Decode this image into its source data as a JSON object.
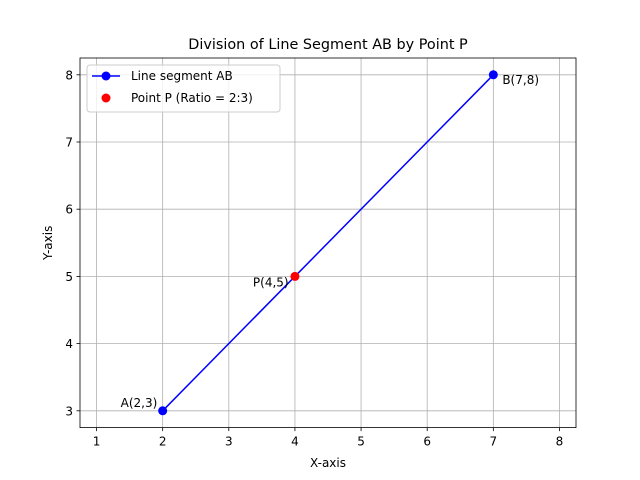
{
  "chart_data": {
    "type": "line",
    "title": "Division of Line Segment AB by Point P",
    "xlabel": "X-axis",
    "ylabel": "Y-axis",
    "xlim": [
      0.75,
      8.25
    ],
    "ylim": [
      2.75,
      8.25
    ],
    "xticks": [
      1,
      2,
      3,
      4,
      5,
      6,
      7,
      8
    ],
    "yticks": [
      3,
      4,
      5,
      6,
      7,
      8
    ],
    "xtick_labels": [
      "1",
      "2",
      "3",
      "4",
      "5",
      "6",
      "7",
      "8"
    ],
    "ytick_labels": [
      "3",
      "4",
      "5",
      "6",
      "7",
      "8"
    ],
    "grid": true,
    "legend_position": "top-left",
    "series": [
      {
        "name": "Line segment AB",
        "color": "#0000ff",
        "marker": "circle",
        "line": true,
        "x": [
          2,
          7
        ],
        "y": [
          3,
          8
        ]
      },
      {
        "name": "Point P (Ratio = 2:3)",
        "color": "#ff0000",
        "marker": "circle",
        "line": false,
        "x": [
          4
        ],
        "y": [
          5
        ]
      }
    ],
    "annotations": [
      {
        "text": "A(2,3)",
        "x": 2,
        "y": 3
      },
      {
        "text": "B(7,8)",
        "x": 7,
        "y": 8
      },
      {
        "text": "P(4,5)",
        "x": 4,
        "y": 5
      }
    ]
  }
}
